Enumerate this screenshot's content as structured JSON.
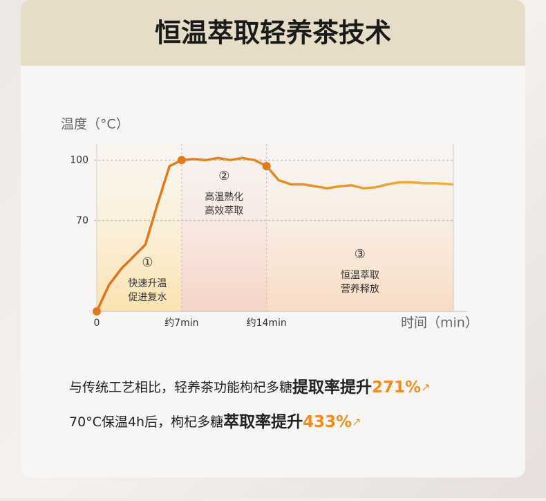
{
  "header": {
    "title": "恒温萃取轻养茶技术"
  },
  "chart_data": {
    "type": "line",
    "y_axis_label": "温度（°C）",
    "x_axis_label": "时间（min）",
    "x": [
      0,
      1,
      2,
      3,
      4,
      5,
      6,
      7,
      8,
      9,
      10,
      11,
      12,
      13,
      14,
      15,
      16,
      17,
      18,
      19,
      20,
      21,
      22,
      23,
      24,
      25,
      26,
      27,
      28,
      29.4
    ],
    "series": [
      {
        "color": "#e07a1f",
        "values": [
          25,
          38,
          46,
          52,
          58,
          78,
          97,
          100,
          100.5,
          100,
          101,
          100,
          101,
          100,
          97,
          90,
          88,
          88,
          87,
          86,
          87,
          87.5,
          86,
          86.5,
          88,
          89,
          89,
          88.5,
          88.5,
          88
        ]
      }
    ],
    "markers": [
      0,
      7,
      14
    ],
    "xlim": [
      0,
      29.4
    ],
    "ylim": [
      25,
      108
    ],
    "xticks": [
      0,
      {
        "value": 7,
        "label": "约7min"
      },
      {
        "value": 14,
        "label": "约14min"
      }
    ],
    "yticks": [
      70,
      100
    ],
    "grid": true,
    "annotations": [
      {
        "number": "①",
        "lines": [
          "快速升温",
          "促进复水"
        ]
      },
      {
        "number": "②",
        "lines": [
          "高温熟化",
          "高效萃取"
        ]
      },
      {
        "number": "③",
        "lines": [
          "恒温萃取",
          "营养释放"
        ]
      }
    ]
  },
  "footer": {
    "lines": [
      {
        "text": "与传统工艺相比，轻养茶功能枸杞多糖",
        "bold": "提取率提升",
        "highlight": "271%"
      },
      {
        "text": "70°C保温4h后，枸杞多糖",
        "bold": "萃取率提升",
        "highlight": "433%"
      }
    ]
  }
}
